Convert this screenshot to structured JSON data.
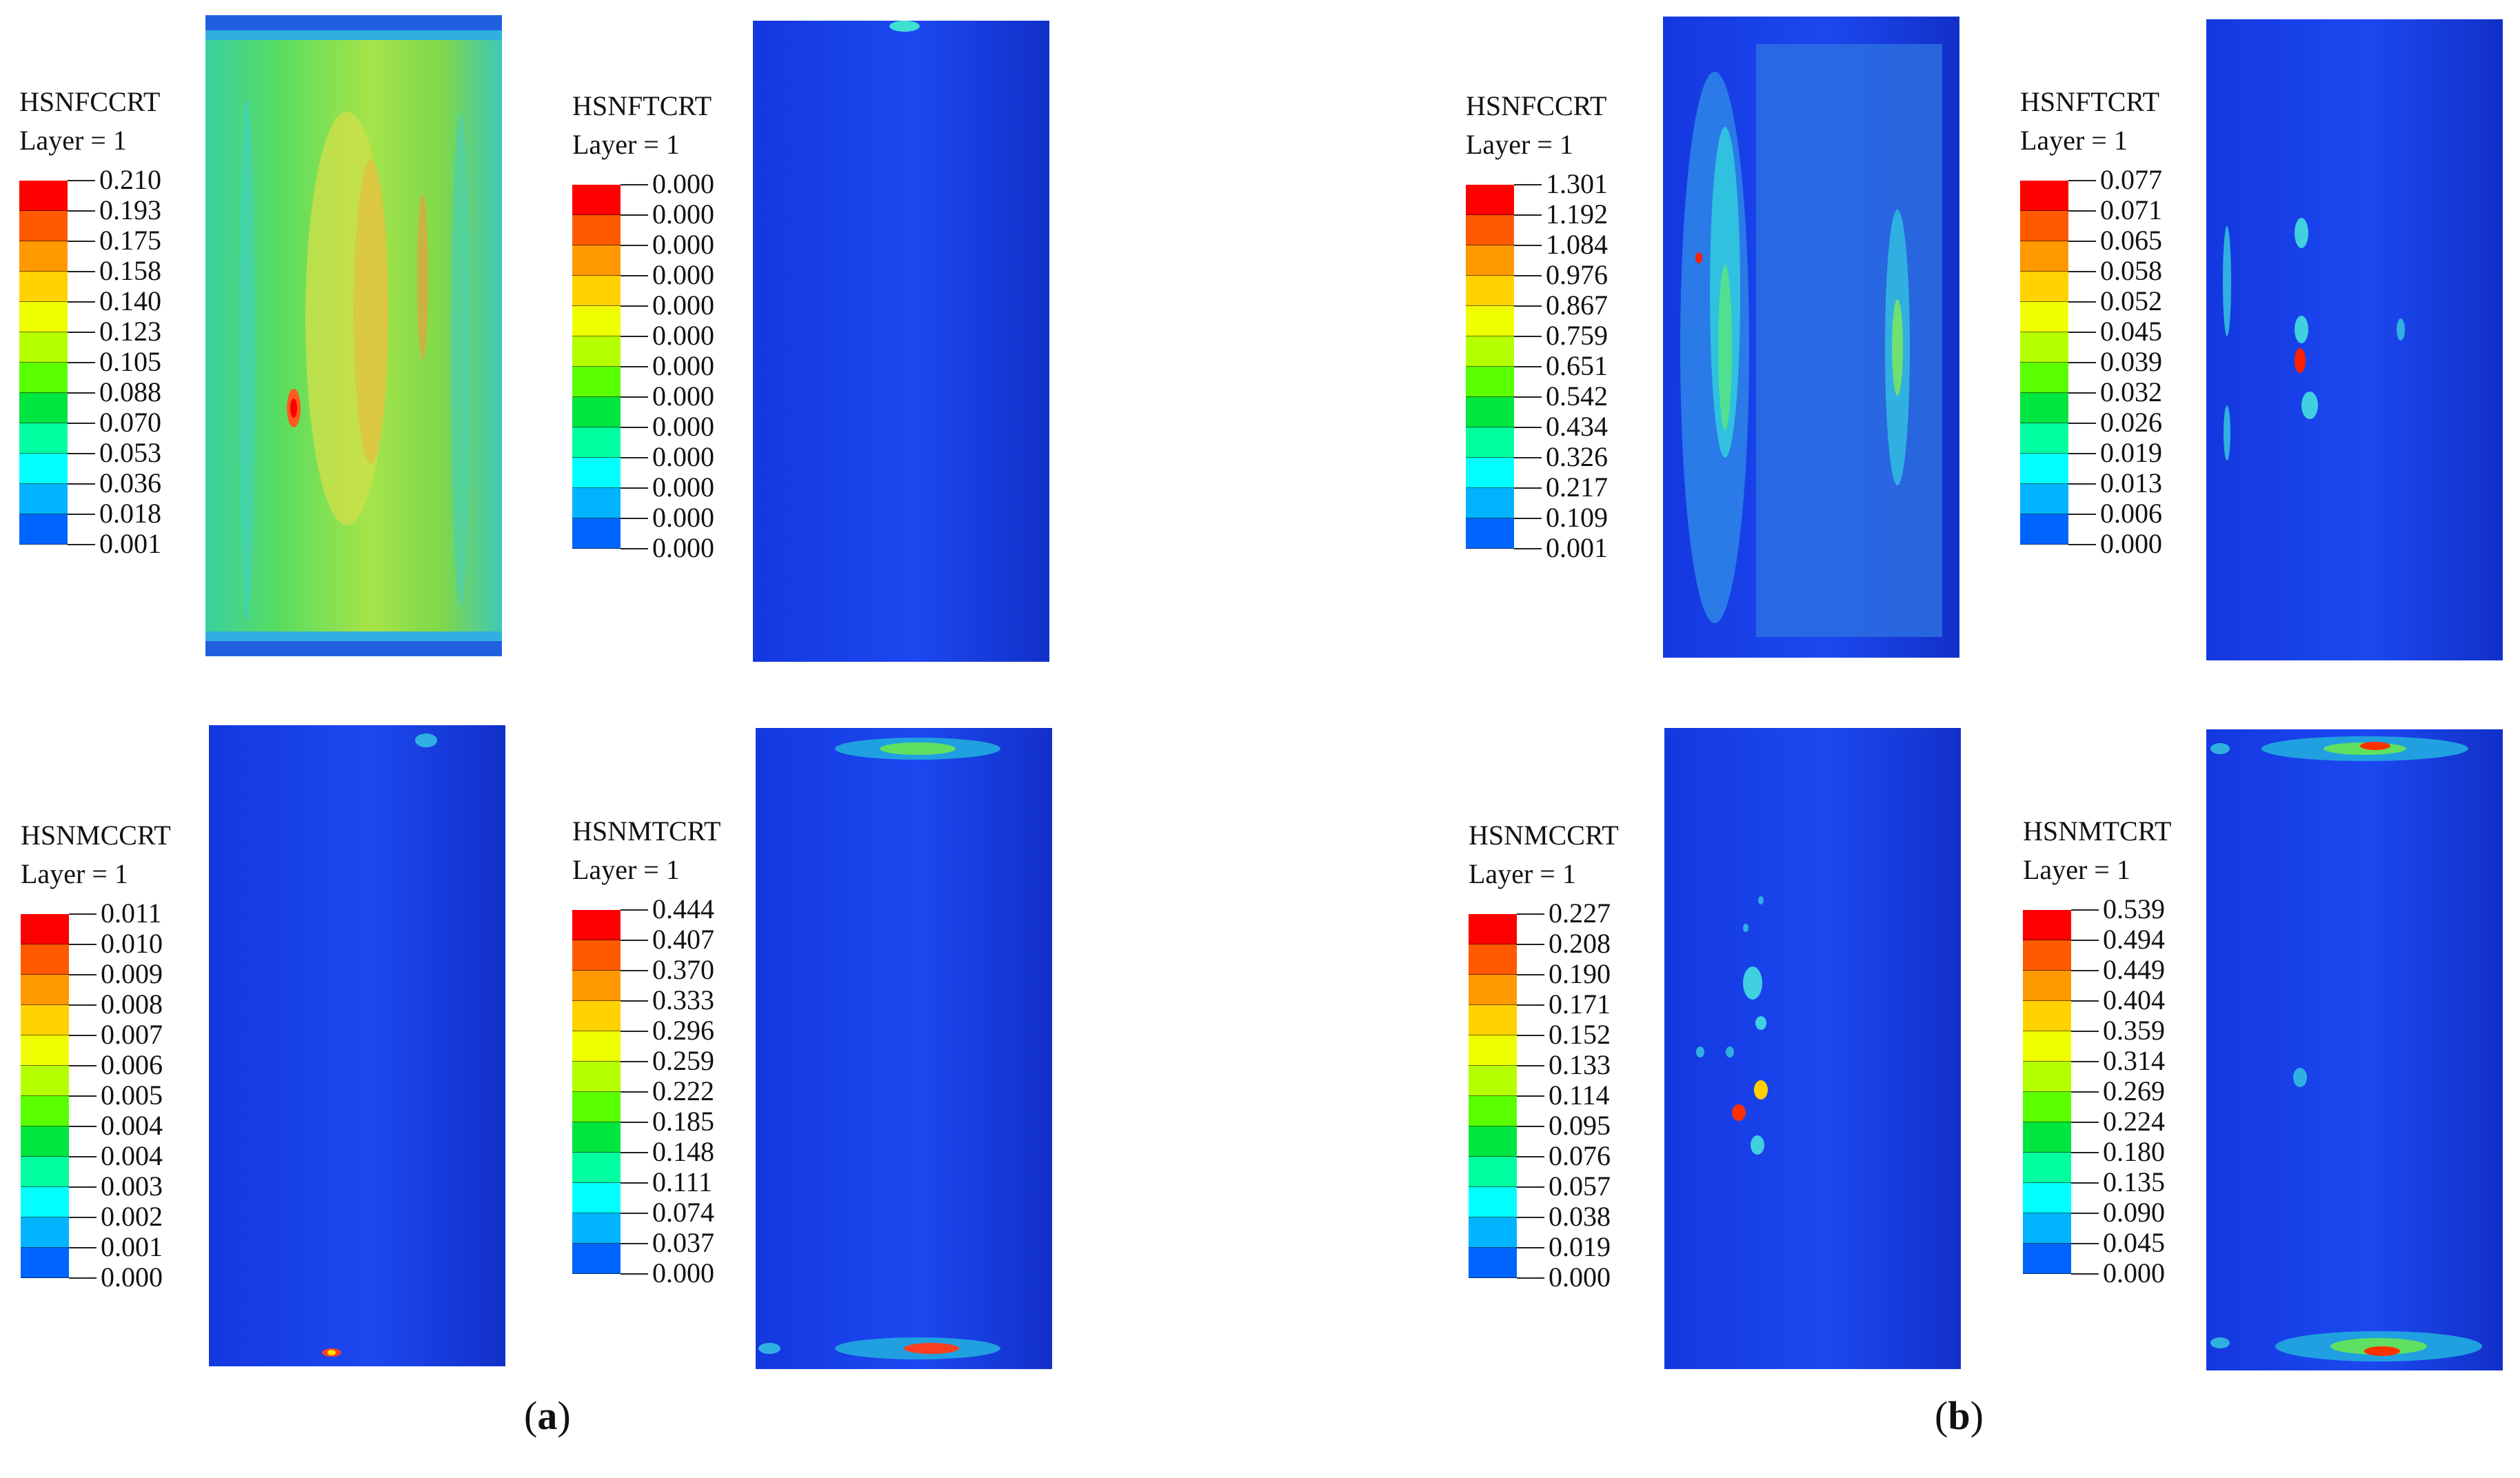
{
  "layer_label": "Layer = 1",
  "captions": {
    "a": "a",
    "b": "b"
  },
  "colormap": [
    "#ff0000",
    "#ff5a00",
    "#ff9900",
    "#ffd200",
    "#f0ff00",
    "#b4ff00",
    "#5aff00",
    "#00e640",
    "#00ffa0",
    "#00ffff",
    "#00b4ff",
    "#0064ff",
    "#0000ff"
  ],
  "panels": {
    "a_fc": {
      "name": "HSNFCCRT",
      "values": [
        "0.210",
        "0.193",
        "0.175",
        "0.158",
        "0.140",
        "0.123",
        "0.105",
        "0.088",
        "0.070",
        "0.053",
        "0.036",
        "0.018",
        "0.001"
      ]
    },
    "a_ft": {
      "name": "HSNFTCRT",
      "values": [
        "0.000",
        "0.000",
        "0.000",
        "0.000",
        "0.000",
        "0.000",
        "0.000",
        "0.000",
        "0.000",
        "0.000",
        "0.000",
        "0.000",
        "0.000"
      ]
    },
    "a_mc": {
      "name": "HSNMCCRT",
      "values": [
        "0.011",
        "0.010",
        "0.009",
        "0.008",
        "0.007",
        "0.006",
        "0.005",
        "0.004",
        "0.004",
        "0.003",
        "0.002",
        "0.001",
        "0.000"
      ]
    },
    "a_mt": {
      "name": "HSNMTCRT",
      "values": [
        "0.444",
        "0.407",
        "0.370",
        "0.333",
        "0.296",
        "0.259",
        "0.222",
        "0.185",
        "0.148",
        "0.111",
        "0.074",
        "0.037",
        "0.000"
      ]
    },
    "b_fc": {
      "name": "HSNFCCRT",
      "values": [
        "1.301",
        "1.192",
        "1.084",
        "0.976",
        "0.867",
        "0.759",
        "0.651",
        "0.542",
        "0.434",
        "0.326",
        "0.217",
        "0.109",
        "0.001"
      ]
    },
    "b_ft": {
      "name": "HSNFTCRT",
      "values": [
        "0.077",
        "0.071",
        "0.065",
        "0.058",
        "0.052",
        "0.045",
        "0.039",
        "0.032",
        "0.026",
        "0.019",
        "0.013",
        "0.006",
        "0.000"
      ]
    },
    "b_mc": {
      "name": "HSNMCCRT",
      "values": [
        "0.227",
        "0.208",
        "0.190",
        "0.171",
        "0.152",
        "0.133",
        "0.114",
        "0.095",
        "0.076",
        "0.057",
        "0.038",
        "0.019",
        "0.000"
      ]
    },
    "b_mt": {
      "name": "HSNMTCRT",
      "values": [
        "0.539",
        "0.494",
        "0.449",
        "0.404",
        "0.359",
        "0.314",
        "0.269",
        "0.224",
        "0.180",
        "0.135",
        "0.090",
        "0.045",
        "0.000"
      ]
    }
  }
}
